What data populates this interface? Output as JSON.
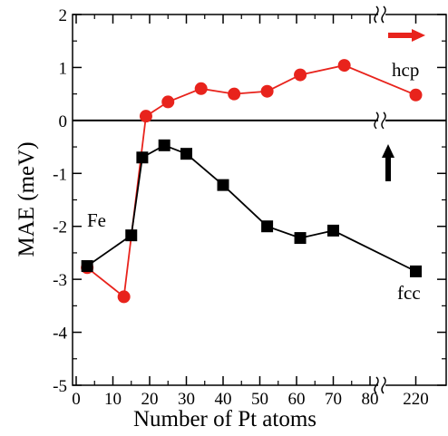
{
  "chart_data": {
    "type": "line",
    "xlabel": "Number of Pt atoms",
    "ylabel": "MAE (meV)",
    "ylim": [
      -5,
      2
    ],
    "yticks": [
      2,
      1,
      0,
      -1,
      -2,
      -3,
      -4,
      -5
    ],
    "xticks": [
      0,
      10,
      20,
      30,
      40,
      50,
      60,
      70,
      80,
      220
    ],
    "x_axis_break": "between 80 and 220",
    "zero_line": true,
    "grid": false,
    "annotations": [
      "Fe",
      "hcp",
      "fcc"
    ],
    "arrows": [
      {
        "direction": "right",
        "color": "#e8231c"
      },
      {
        "direction": "up",
        "color": "#000000"
      }
    ],
    "series": [
      {
        "color": "#e8231c",
        "marker": "circle",
        "x": [
          3,
          13,
          19,
          25,
          34,
          43,
          52,
          61,
          73,
          220
        ],
        "y": [
          -2.78,
          -3.33,
          0.08,
          0.35,
          0.6,
          0.5,
          0.55,
          0.86,
          1.04,
          0.48
        ]
      },
      {
        "color": "#000000",
        "marker": "square",
        "x": [
          3,
          15,
          18,
          24,
          30,
          40,
          52,
          61,
          70,
          220
        ],
        "y": [
          -2.75,
          -2.17,
          -0.7,
          -0.47,
          -0.63,
          -1.22,
          -2.0,
          -2.22,
          -2.08,
          -2.85
        ]
      }
    ]
  }
}
